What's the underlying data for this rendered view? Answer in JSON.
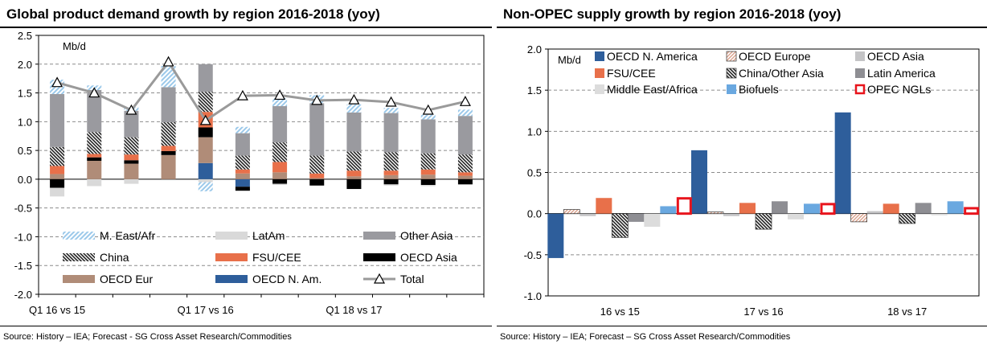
{
  "source_left": "Source: History – IEA; Forecast - SG Cross Asset Research/Commodities",
  "source_right": "Source: History – IEA; Forecast – SG Cross Asset Research/Commodities",
  "colors": {
    "m_east_afr": "#9cc9ea",
    "latam": "#d9d9d9",
    "other_asia": "#9a9a9f",
    "china": "#5b5b5b",
    "fsu_cee": "#e8704a",
    "oecd_asia": "#000000",
    "oecd_eur": "#b08c78",
    "oecd_n_am": "#2e5e9b",
    "total": "#9a9a9a",
    "oecd_n_america": "#2e5e9b",
    "oecd_europe": "#d9a08a",
    "oecd_asia_r": "#c4c4c6",
    "china_other_asia": "#3a3a3a",
    "latin_america": "#8e8e93",
    "middle_east_africa": "#dcdcdc",
    "biofuels": "#6aa8e0",
    "opec_ngls": "#e8141c"
  },
  "chart_data": [
    {
      "type": "bar",
      "stacked": true,
      "title": "Global product demand growth by region 2016-2018 (yoy)",
      "unit_label": "Mb/d",
      "ylim": [
        -2.0,
        2.5
      ],
      "yticks": [
        "2.5",
        "2.0",
        "1.5",
        "1.0",
        "0.5",
        "0.0",
        "-0.5",
        "-1.0",
        "-1.5",
        "-2.0"
      ],
      "grid": true,
      "legend_position": "bottom",
      "x_labels": [
        {
          "label": "Q1 16 vs 15",
          "index": 0
        },
        {
          "label": "Q1 17 vs 16",
          "index": 4
        },
        {
          "label": "Q1 18 vs 17",
          "index": 8
        }
      ],
      "series": [
        {
          "key": "oecd_n_am",
          "name": "OECD N. Am.",
          "values": [
            0.0,
            0.0,
            0.0,
            0.0,
            0.28,
            -0.13,
            0.0,
            0.0,
            0.0,
            0.0,
            0.0,
            0.0
          ]
        },
        {
          "key": "oecd_eur",
          "name": "OECD Eur",
          "values": [
            0.09,
            0.32,
            0.27,
            0.42,
            0.45,
            0.1,
            0.12,
            0.02,
            0.05,
            0.07,
            0.08,
            0.06
          ]
        },
        {
          "key": "oecd_asia",
          "name": "OECD Asia",
          "values": [
            -0.15,
            0.06,
            0.06,
            0.07,
            0.17,
            -0.07,
            -0.08,
            -0.11,
            -0.17,
            -0.09,
            -0.1,
            -0.09
          ]
        },
        {
          "key": "fsu_cee",
          "name": "FSU/CEE",
          "values": [
            0.14,
            0.06,
            0.1,
            0.09,
            0.27,
            0.07,
            0.18,
            0.08,
            0.1,
            0.08,
            0.09,
            0.06
          ]
        },
        {
          "key": "china",
          "name": "China",
          "values": [
            0.33,
            0.38,
            0.3,
            0.41,
            0.35,
            0.24,
            0.34,
            0.31,
            0.33,
            0.32,
            0.28,
            0.31
          ]
        },
        {
          "key": "other_asia",
          "name": "Other Asia",
          "values": [
            0.92,
            0.73,
            0.46,
            0.61,
            0.48,
            0.39,
            0.63,
            0.91,
            0.68,
            0.68,
            0.59,
            0.67
          ]
        },
        {
          "key": "latam",
          "name": "LatAm",
          "values": [
            -0.15,
            -0.12,
            -0.08,
            0.0,
            -0.05,
            0.0,
            -0.02,
            0.0,
            0.0,
            -0.02,
            -0.02,
            0.0
          ]
        },
        {
          "key": "m_east_afr",
          "name": "M. East/Afr",
          "values": [
            0.25,
            0.08,
            0.06,
            0.37,
            -0.16,
            0.11,
            0.14,
            0.14,
            0.14,
            0.09,
            0.08,
            0.11
          ]
        }
      ],
      "total": {
        "name": "Total",
        "values": [
          1.68,
          1.5,
          1.2,
          2.04,
          1.02,
          1.45,
          1.46,
          1.37,
          1.38,
          1.34,
          1.2,
          1.35
        ]
      },
      "legend": [
        [
          "m_east_afr",
          "latam",
          "other_asia"
        ],
        [
          "china",
          "fsu_cee",
          "oecd_asia"
        ],
        [
          "oecd_eur",
          "oecd_n_am",
          "total"
        ]
      ]
    },
    {
      "type": "bar",
      "title": "Non-OPEC supply growth by region 2016-2018 (yoy)",
      "unit_label": "Mb/d",
      "ylim": [
        -1.0,
        2.0
      ],
      "yticks": [
        "2.0",
        "1.5",
        "1.0",
        "0.5",
        "0.0",
        "-0.5",
        "-1.0"
      ],
      "grid": true,
      "legend_position": "top",
      "categories": [
        "16 vs 15",
        "17 vs 16",
        "18 vs 17"
      ],
      "series": [
        {
          "key": "oecd_n_america",
          "name": "OECD N. America",
          "values": [
            -0.54,
            0.77,
            1.23
          ]
        },
        {
          "key": "oecd_europe",
          "name": "OECD Europe",
          "values": [
            0.05,
            0.02,
            -0.1
          ]
        },
        {
          "key": "oecd_asia_r",
          "name": "OECD Asia",
          "values": [
            -0.03,
            -0.03,
            0.03
          ]
        },
        {
          "key": "fsu_cee",
          "name": "FSU/CEE",
          "values": [
            0.19,
            0.13,
            0.12
          ]
        },
        {
          "key": "china_other_asia",
          "name": "China/Other Asia",
          "values": [
            -0.29,
            -0.19,
            -0.12
          ]
        },
        {
          "key": "latin_america",
          "name": "Latin America",
          "values": [
            -0.1,
            0.15,
            0.13
          ]
        },
        {
          "key": "middle_east_africa",
          "name": "Middle East/Africa",
          "values": [
            -0.16,
            -0.07,
            -0.02
          ]
        },
        {
          "key": "biofuels",
          "name": "Biofuels",
          "values": [
            0.09,
            0.12,
            0.15
          ]
        },
        {
          "key": "opec_ngls",
          "name": "OPEC NGLs",
          "values": [
            0.2,
            0.13,
            0.08
          ]
        }
      ],
      "legend": [
        [
          "oecd_n_america",
          "oecd_europe",
          "oecd_asia_r"
        ],
        [
          "fsu_cee",
          "china_other_asia",
          "latin_america"
        ],
        [
          "middle_east_africa",
          "biofuels",
          "opec_ngls"
        ]
      ]
    }
  ]
}
